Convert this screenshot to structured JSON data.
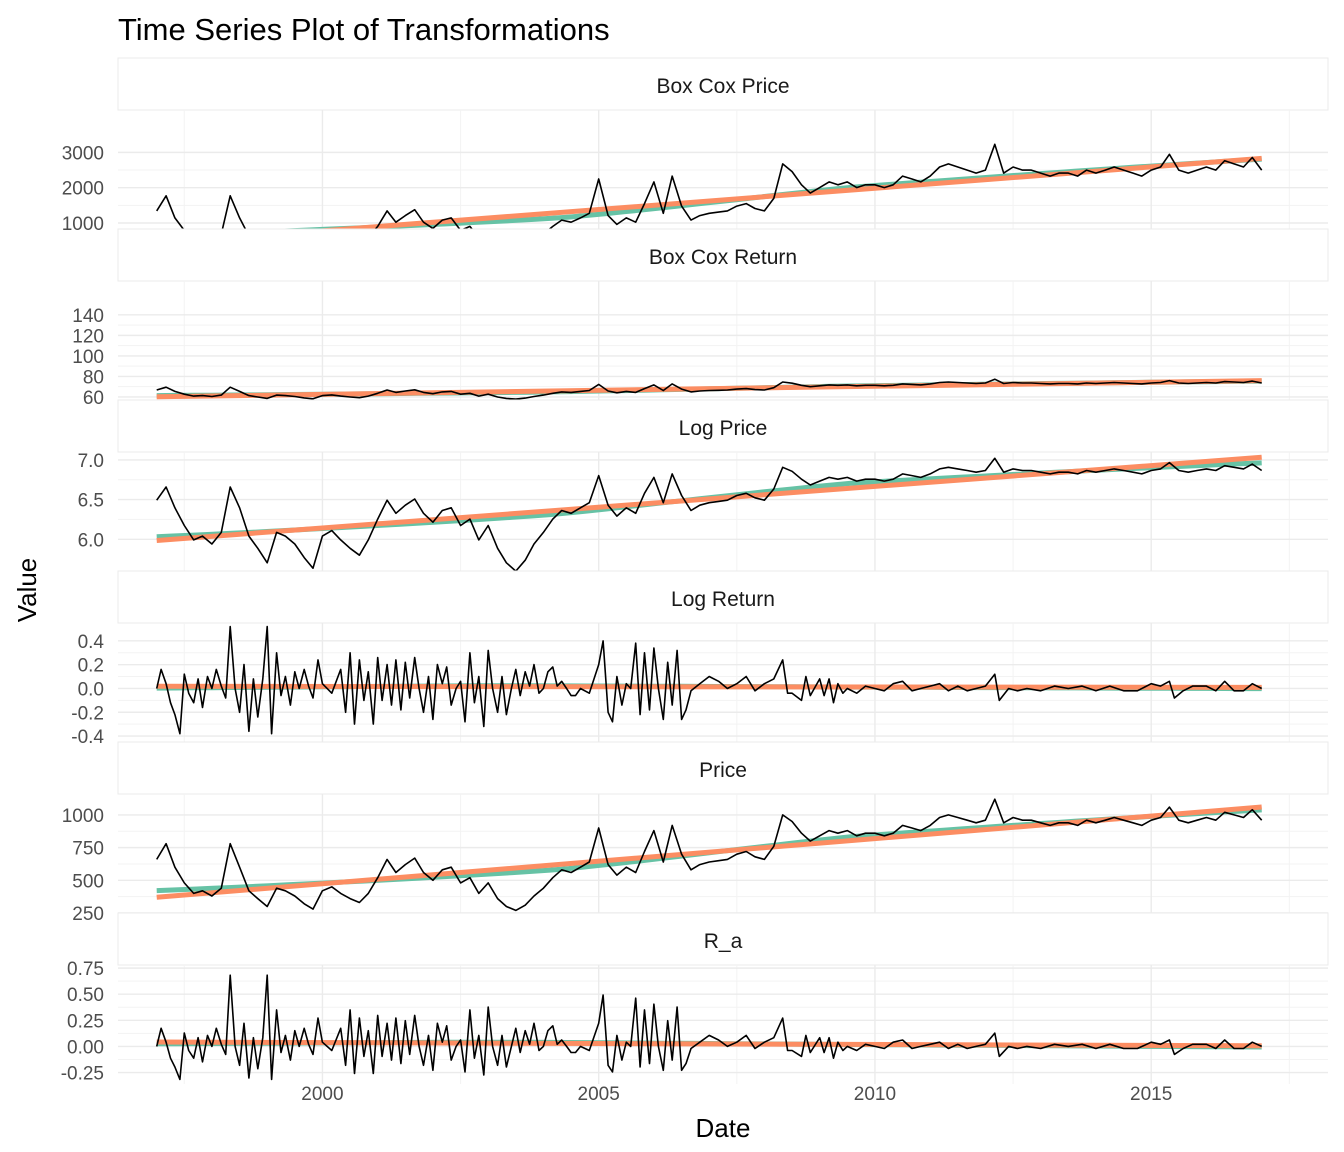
{
  "chart_data": {
    "type": "line",
    "title": "Time Series Plot of Transformations",
    "xlabel": "Date",
    "ylabel": "Value",
    "x_range": [
      1996.3,
      2018.2
    ],
    "x_ticks": [
      2000,
      2005,
      2010,
      2015
    ],
    "x_tick_labels": [
      "2000",
      "2005",
      "2010",
      "2015"
    ],
    "grid": true,
    "colors": {
      "series": "#000000",
      "smooth": "#66c2a5",
      "linear": "#fc8d62",
      "strip_bg": "#ffffff",
      "grid": "#ebebeb"
    },
    "price_series": [
      [
        1997.0,
        660
      ],
      [
        1997.17,
        780
      ],
      [
        1997.33,
        600
      ],
      [
        1997.5,
        480
      ],
      [
        1997.67,
        400
      ],
      [
        1997.83,
        420
      ],
      [
        1998.0,
        380
      ],
      [
        1998.17,
        440
      ],
      [
        1998.33,
        780
      ],
      [
        1998.5,
        600
      ],
      [
        1998.67,
        420
      ],
      [
        1998.83,
        360
      ],
      [
        1999.0,
        300
      ],
      [
        1999.17,
        440
      ],
      [
        1999.33,
        420
      ],
      [
        1999.5,
        380
      ],
      [
        1999.67,
        320
      ],
      [
        1999.83,
        280
      ],
      [
        2000.0,
        420
      ],
      [
        2000.17,
        450
      ],
      [
        2000.33,
        400
      ],
      [
        2000.5,
        360
      ],
      [
        2000.67,
        330
      ],
      [
        2000.83,
        400
      ],
      [
        2001.0,
        520
      ],
      [
        2001.17,
        660
      ],
      [
        2001.33,
        560
      ],
      [
        2001.5,
        620
      ],
      [
        2001.67,
        670
      ],
      [
        2001.83,
        560
      ],
      [
        2002.0,
        500
      ],
      [
        2002.17,
        580
      ],
      [
        2002.33,
        600
      ],
      [
        2002.5,
        480
      ],
      [
        2002.67,
        520
      ],
      [
        2002.83,
        400
      ],
      [
        2003.0,
        480
      ],
      [
        2003.17,
        360
      ],
      [
        2003.33,
        300
      ],
      [
        2003.5,
        270
      ],
      [
        2003.67,
        310
      ],
      [
        2003.83,
        380
      ],
      [
        2004.0,
        440
      ],
      [
        2004.17,
        520
      ],
      [
        2004.33,
        580
      ],
      [
        2004.5,
        560
      ],
      [
        2004.67,
        600
      ],
      [
        2004.83,
        640
      ],
      [
        2005.0,
        900
      ],
      [
        2005.17,
        620
      ],
      [
        2005.33,
        540
      ],
      [
        2005.5,
        600
      ],
      [
        2005.67,
        560
      ],
      [
        2005.83,
        720
      ],
      [
        2006.0,
        880
      ],
      [
        2006.17,
        640
      ],
      [
        2006.33,
        920
      ],
      [
        2006.5,
        700
      ],
      [
        2006.67,
        580
      ],
      [
        2006.83,
        620
      ],
      [
        2007.0,
        640
      ],
      [
        2007.17,
        650
      ],
      [
        2007.33,
        660
      ],
      [
        2007.5,
        700
      ],
      [
        2007.67,
        720
      ],
      [
        2007.83,
        680
      ],
      [
        2008.0,
        660
      ],
      [
        2008.17,
        760
      ],
      [
        2008.33,
        1000
      ],
      [
        2008.5,
        950
      ],
      [
        2008.67,
        860
      ],
      [
        2008.83,
        800
      ],
      [
        2009.0,
        840
      ],
      [
        2009.17,
        880
      ],
      [
        2009.33,
        860
      ],
      [
        2009.5,
        880
      ],
      [
        2009.67,
        840
      ],
      [
        2009.83,
        860
      ],
      [
        2010.0,
        860
      ],
      [
        2010.17,
        840
      ],
      [
        2010.33,
        860
      ],
      [
        2010.5,
        920
      ],
      [
        2010.67,
        900
      ],
      [
        2010.83,
        880
      ],
      [
        2011.0,
        920
      ],
      [
        2011.17,
        980
      ],
      [
        2011.33,
        1000
      ],
      [
        2011.5,
        980
      ],
      [
        2011.67,
        960
      ],
      [
        2011.83,
        940
      ],
      [
        2012.0,
        960
      ],
      [
        2012.17,
        1120
      ],
      [
        2012.33,
        940
      ],
      [
        2012.5,
        980
      ],
      [
        2012.67,
        960
      ],
      [
        2012.83,
        960
      ],
      [
        2013.0,
        940
      ],
      [
        2013.17,
        920
      ],
      [
        2013.33,
        940
      ],
      [
        2013.5,
        940
      ],
      [
        2013.67,
        920
      ],
      [
        2013.83,
        960
      ],
      [
        2014.0,
        940
      ],
      [
        2014.17,
        960
      ],
      [
        2014.33,
        980
      ],
      [
        2014.5,
        960
      ],
      [
        2014.67,
        940
      ],
      [
        2014.83,
        920
      ],
      [
        2015.0,
        960
      ],
      [
        2015.17,
        980
      ],
      [
        2015.33,
        1060
      ],
      [
        2015.5,
        960
      ],
      [
        2015.67,
        940
      ],
      [
        2015.83,
        960
      ],
      [
        2016.0,
        980
      ],
      [
        2016.17,
        960
      ],
      [
        2016.33,
        1020
      ],
      [
        2016.5,
        1000
      ],
      [
        2016.67,
        980
      ],
      [
        2016.83,
        1040
      ],
      [
        2017.0,
        960
      ]
    ],
    "log_return_series": [
      [
        1997.0,
        0.0
      ],
      [
        1997.08,
        0.16
      ],
      [
        1997.17,
        0.04
      ],
      [
        1997.25,
        -0.12
      ],
      [
        1997.33,
        -0.22
      ],
      [
        1997.42,
        -0.38
      ],
      [
        1997.5,
        0.12
      ],
      [
        1997.58,
        -0.04
      ],
      [
        1997.67,
        -0.12
      ],
      [
        1997.75,
        0.08
      ],
      [
        1997.83,
        -0.16
      ],
      [
        1997.92,
        0.1
      ],
      [
        1998.0,
        0.0
      ],
      [
        1998.08,
        0.16
      ],
      [
        1998.17,
        0.02
      ],
      [
        1998.25,
        -0.08
      ],
      [
        1998.33,
        0.52
      ],
      [
        1998.42,
        0.0
      ],
      [
        1998.5,
        -0.2
      ],
      [
        1998.58,
        0.2
      ],
      [
        1998.67,
        -0.36
      ],
      [
        1998.75,
        0.08
      ],
      [
        1998.83,
        -0.24
      ],
      [
        1998.92,
        0.08
      ],
      [
        1999.0,
        0.52
      ],
      [
        1999.08,
        -0.38
      ],
      [
        1999.17,
        0.3
      ],
      [
        1999.25,
        -0.06
      ],
      [
        1999.33,
        0.1
      ],
      [
        1999.42,
        -0.14
      ],
      [
        1999.5,
        0.14
      ],
      [
        1999.58,
        0.0
      ],
      [
        1999.67,
        0.16
      ],
      [
        1999.75,
        0.02
      ],
      [
        1999.83,
        -0.08
      ],
      [
        1999.92,
        0.24
      ],
      [
        2000.0,
        0.04
      ],
      [
        2000.17,
        -0.04
      ],
      [
        2000.33,
        0.16
      ],
      [
        2000.42,
        -0.2
      ],
      [
        2000.5,
        0.3
      ],
      [
        2000.58,
        -0.3
      ],
      [
        2000.67,
        0.24
      ],
      [
        2000.75,
        -0.1
      ],
      [
        2000.83,
        0.14
      ],
      [
        2000.92,
        -0.3
      ],
      [
        2001.0,
        0.26
      ],
      [
        2001.08,
        -0.1
      ],
      [
        2001.17,
        0.2
      ],
      [
        2001.25,
        -0.14
      ],
      [
        2001.33,
        0.24
      ],
      [
        2001.42,
        -0.18
      ],
      [
        2001.5,
        0.22
      ],
      [
        2001.58,
        -0.08
      ],
      [
        2001.67,
        0.26
      ],
      [
        2001.75,
        0.0
      ],
      [
        2001.83,
        -0.2
      ],
      [
        2001.92,
        0.1
      ],
      [
        2002.0,
        -0.26
      ],
      [
        2002.08,
        0.2
      ],
      [
        2002.17,
        0.04
      ],
      [
        2002.25,
        0.18
      ],
      [
        2002.33,
        -0.14
      ],
      [
        2002.42,
        0.0
      ],
      [
        2002.5,
        0.06
      ],
      [
        2002.58,
        -0.28
      ],
      [
        2002.67,
        0.3
      ],
      [
        2002.75,
        -0.12
      ],
      [
        2002.83,
        0.1
      ],
      [
        2002.92,
        -0.32
      ],
      [
        2003.0,
        0.32
      ],
      [
        2003.08,
        0.0
      ],
      [
        2003.17,
        -0.2
      ],
      [
        2003.25,
        0.1
      ],
      [
        2003.33,
        -0.22
      ],
      [
        2003.42,
        0.0
      ],
      [
        2003.5,
        0.16
      ],
      [
        2003.58,
        -0.06
      ],
      [
        2003.67,
        0.14
      ],
      [
        2003.75,
        0.02
      ],
      [
        2003.83,
        0.2
      ],
      [
        2003.92,
        -0.04
      ],
      [
        2004.0,
        0.0
      ],
      [
        2004.08,
        0.14
      ],
      [
        2004.17,
        0.18
      ],
      [
        2004.25,
        0.02
      ],
      [
        2004.33,
        0.06
      ],
      [
        2004.42,
        0.0
      ],
      [
        2004.5,
        -0.06
      ],
      [
        2004.58,
        -0.06
      ],
      [
        2004.67,
        0.0
      ],
      [
        2004.83,
        -0.04
      ],
      [
        2005.0,
        0.2
      ],
      [
        2005.08,
        0.4
      ],
      [
        2005.17,
        -0.2
      ],
      [
        2005.25,
        -0.28
      ],
      [
        2005.33,
        0.1
      ],
      [
        2005.42,
        -0.14
      ],
      [
        2005.5,
        0.04
      ],
      [
        2005.58,
        0.0
      ],
      [
        2005.67,
        0.38
      ],
      [
        2005.75,
        -0.22
      ],
      [
        2005.83,
        0.3
      ],
      [
        2005.92,
        -0.18
      ],
      [
        2006.0,
        0.34
      ],
      [
        2006.08,
        0.0
      ],
      [
        2006.17,
        -0.26
      ],
      [
        2006.25,
        0.22
      ],
      [
        2006.33,
        -0.14
      ],
      [
        2006.42,
        0.32
      ],
      [
        2006.5,
        -0.26
      ],
      [
        2006.58,
        -0.18
      ],
      [
        2006.67,
        -0.02
      ],
      [
        2006.83,
        0.04
      ],
      [
        2007.0,
        0.1
      ],
      [
        2007.17,
        0.06
      ],
      [
        2007.33,
        0.0
      ],
      [
        2007.5,
        0.04
      ],
      [
        2007.67,
        0.1
      ],
      [
        2007.83,
        -0.02
      ],
      [
        2008.0,
        0.04
      ],
      [
        2008.17,
        0.08
      ],
      [
        2008.33,
        0.24
      ],
      [
        2008.42,
        -0.04
      ],
      [
        2008.5,
        -0.04
      ],
      [
        2008.67,
        -0.1
      ],
      [
        2008.75,
        0.1
      ],
      [
        2008.83,
        -0.06
      ],
      [
        2009.0,
        0.08
      ],
      [
        2009.08,
        -0.06
      ],
      [
        2009.17,
        0.08
      ],
      [
        2009.25,
        -0.12
      ],
      [
        2009.33,
        0.04
      ],
      [
        2009.42,
        -0.04
      ],
      [
        2009.5,
        0.0
      ],
      [
        2009.67,
        -0.04
      ],
      [
        2009.83,
        0.02
      ],
      [
        2010.0,
        0.0
      ],
      [
        2010.17,
        -0.02
      ],
      [
        2010.33,
        0.04
      ],
      [
        2010.5,
        0.06
      ],
      [
        2010.67,
        -0.02
      ],
      [
        2010.83,
        0.0
      ],
      [
        2011.0,
        0.02
      ],
      [
        2011.17,
        0.04
      ],
      [
        2011.33,
        -0.02
      ],
      [
        2011.5,
        0.02
      ],
      [
        2011.67,
        -0.02
      ],
      [
        2011.83,
        0.0
      ],
      [
        2012.0,
        0.02
      ],
      [
        2012.17,
        0.12
      ],
      [
        2012.25,
        -0.1
      ],
      [
        2012.42,
        0.0
      ],
      [
        2012.58,
        -0.02
      ],
      [
        2012.75,
        0.0
      ],
      [
        2013.0,
        -0.02
      ],
      [
        2013.25,
        0.02
      ],
      [
        2013.5,
        0.0
      ],
      [
        2013.75,
        0.02
      ],
      [
        2014.0,
        -0.02
      ],
      [
        2014.25,
        0.02
      ],
      [
        2014.5,
        -0.02
      ],
      [
        2014.75,
        -0.02
      ],
      [
        2015.0,
        0.04
      ],
      [
        2015.17,
        0.02
      ],
      [
        2015.33,
        0.06
      ],
      [
        2015.42,
        -0.08
      ],
      [
        2015.58,
        -0.02
      ],
      [
        2015.75,
        0.02
      ],
      [
        2016.0,
        0.02
      ],
      [
        2016.17,
        -0.02
      ],
      [
        2016.33,
        0.06
      ],
      [
        2016.5,
        -0.02
      ],
      [
        2016.67,
        -0.02
      ],
      [
        2016.83,
        0.04
      ],
      [
        2017.0,
        0.0
      ]
    ],
    "panels": [
      {
        "name": "Box Cox Price",
        "transform": "boxcox-price",
        "ylim": [
          830,
          4200
        ],
        "y_ticks": [
          1000,
          2000,
          3000
        ],
        "y_tick_labels": [
          "1000",
          "2000",
          "3000"
        ]
      },
      {
        "name": "Box Cox Return",
        "transform": "boxcox-return",
        "ylim": [
          57,
          173
        ],
        "y_ticks": [
          60,
          80,
          100,
          120,
          140
        ],
        "y_tick_labels": [
          "60",
          "80",
          "100",
          "120",
          "140"
        ]
      },
      {
        "name": "Log Price",
        "transform": "log-price",
        "ylim": [
          5.6,
          7.1
        ],
        "y_ticks": [
          6.0,
          6.5,
          7.0
        ],
        "y_tick_labels": [
          "6.0",
          "6.5",
          "7.0"
        ]
      },
      {
        "name": "Log Return",
        "transform": "log-return",
        "ylim": [
          -0.45,
          0.55
        ],
        "y_ticks": [
          -0.4,
          -0.2,
          0.0,
          0.2,
          0.4
        ],
        "y_tick_labels": [
          "-0.4",
          "-0.2",
          "0.0",
          "0.2",
          "0.4"
        ]
      },
      {
        "name": "Price",
        "transform": "price",
        "ylim": [
          250,
          1160
        ],
        "y_ticks": [
          250,
          500,
          750,
          1000
        ],
        "y_tick_labels": [
          "250",
          "500",
          "750",
          "1000"
        ]
      },
      {
        "name": "R_a",
        "transform": "r-a",
        "ylim": [
          -0.36,
          0.78
        ],
        "y_ticks": [
          -0.25,
          0.0,
          0.25,
          0.5,
          0.75
        ],
        "y_tick_labels": [
          "-0.25",
          "0.00",
          "0.25",
          "0.50",
          "0.75"
        ]
      }
    ]
  }
}
